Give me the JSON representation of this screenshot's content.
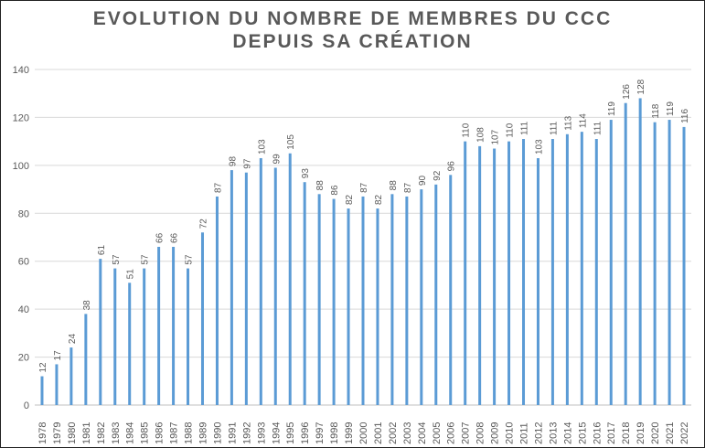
{
  "chart_data": {
    "type": "bar",
    "title_line1": "EVOLUTION DU NOMBRE DE MEMBRES DU CCC",
    "title_line2": "DEPUIS SA CRÉATION",
    "xlabel": "",
    "ylabel": "",
    "ylim": [
      0,
      140
    ],
    "yticks": [
      0,
      20,
      40,
      60,
      80,
      100,
      120,
      140
    ],
    "grid": true,
    "bar_color": "#5B9BD5",
    "grid_color": "#D9D9D9",
    "categories": [
      "1978",
      "1979",
      "1980",
      "1981",
      "1982",
      "1983",
      "1984",
      "1985",
      "1986",
      "1987",
      "1988",
      "1989",
      "1990",
      "1991",
      "1992",
      "1993",
      "1994",
      "1995",
      "1996",
      "1997",
      "1998",
      "1999",
      "2000",
      "2001",
      "2002",
      "2003",
      "2004",
      "2005",
      "2006",
      "2007",
      "2008",
      "2009",
      "2010",
      "2011",
      "2012",
      "2013",
      "2014",
      "2015",
      "2016",
      "2017",
      "2018",
      "2019",
      "2020",
      "2021",
      "2022"
    ],
    "values": [
      12,
      17,
      24,
      38,
      61,
      57,
      51,
      57,
      66,
      66,
      57,
      72,
      87,
      98,
      97,
      103,
      99,
      105,
      93,
      88,
      86,
      82,
      87,
      82,
      88,
      87,
      90,
      92,
      96,
      110,
      108,
      107,
      110,
      111,
      103,
      111,
      113,
      114,
      111,
      119,
      126,
      128,
      118,
      119,
      116
    ]
  }
}
